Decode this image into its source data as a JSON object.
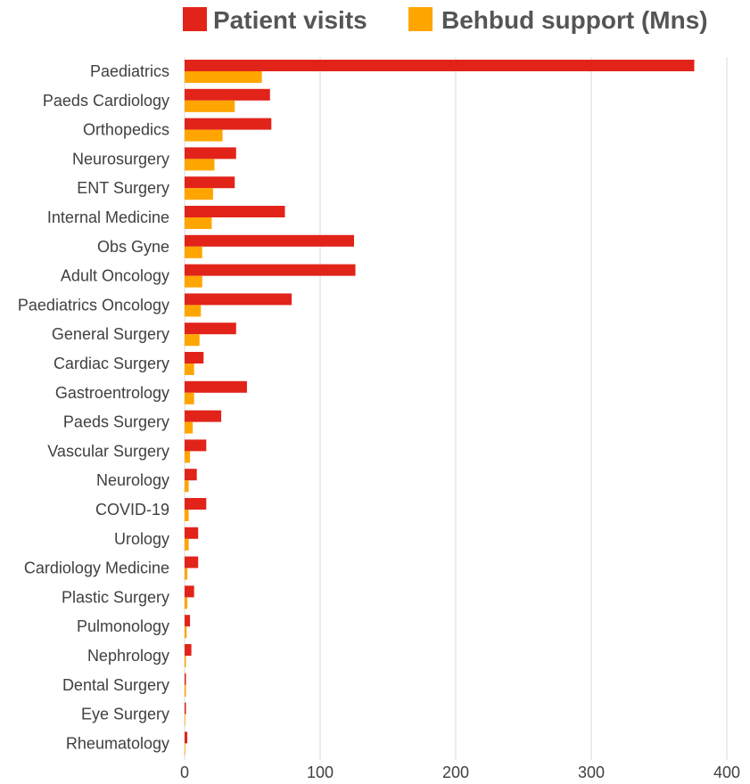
{
  "chart_data": {
    "type": "bar",
    "orientation": "horizontal",
    "categories": [
      "Paediatrics",
      "Paeds Cardiology",
      "Orthopedics",
      "Neurosurgery",
      "ENT Surgery",
      "Internal Medicine",
      "Obs Gyne",
      "Adult Oncology",
      "Paediatrics Oncology",
      "General Surgery",
      "Cardiac Surgery",
      "Gastroentrology",
      "Paeds Surgery",
      "Vascular Surgery",
      "Neurology",
      "COVID-19",
      "Urology",
      "Cardiology Medicine",
      "Plastic Surgery",
      "Pulmonology",
      "Nephrology",
      "Dental Surgery",
      "Eye Surgery",
      "Rheumatology"
    ],
    "series": [
      {
        "name": "Patient visits",
        "color": "#e2231a",
        "values": [
          376,
          63,
          64,
          38,
          37,
          74,
          125,
          126,
          79,
          38,
          14,
          46,
          27,
          16,
          9,
          16,
          10,
          10,
          7,
          4,
          5,
          1,
          1,
          2
        ]
      },
      {
        "name": "Behbud support (Mns)",
        "color": "#ffa500",
        "values": [
          57,
          37,
          28,
          22,
          21,
          20,
          13,
          13,
          12,
          11,
          7,
          7,
          6,
          4,
          3,
          3,
          3,
          2,
          2,
          1.5,
          1,
          1,
          0.5,
          0.5
        ]
      }
    ],
    "xlim": [
      0,
      400
    ],
    "xticks": [
      "0",
      "100",
      "200",
      "300",
      "400"
    ],
    "grid": true,
    "legend_position": "top"
  }
}
